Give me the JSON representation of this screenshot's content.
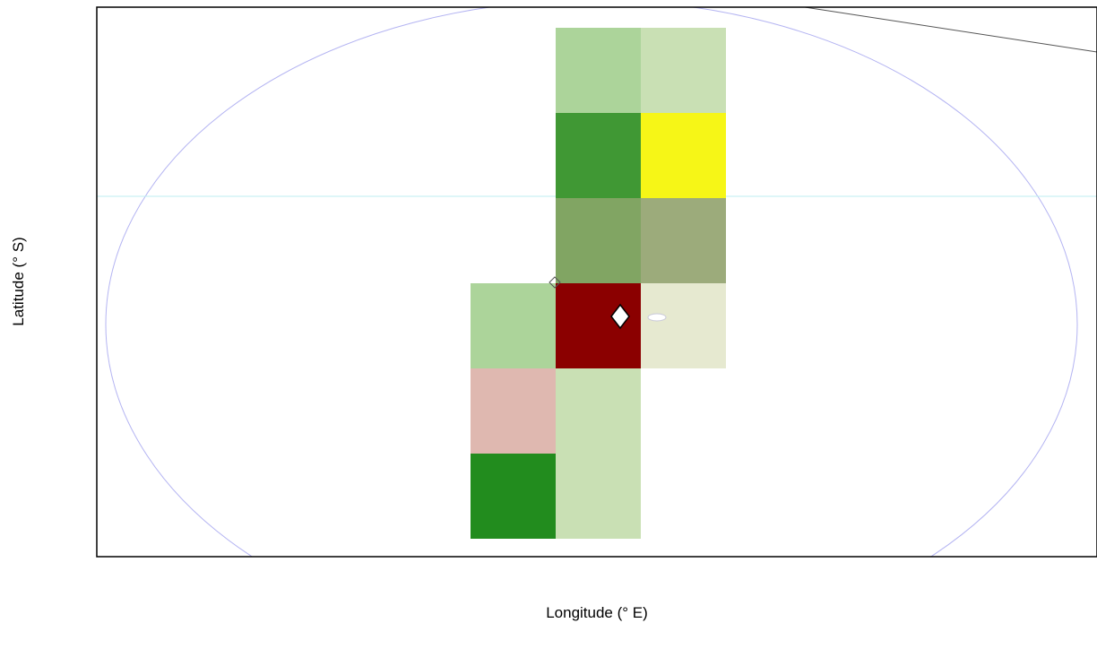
{
  "chart_data": {
    "type": "heatmap",
    "title": "",
    "xlabel": "Longitude (° E)",
    "ylabel": "Latitude (° S)",
    "grid": false,
    "legend": "none",
    "colors": {
      "frame": "#000000",
      "ellipse": "#b4b4f2",
      "equator": "#bdeef2",
      "border_line": "#555555",
      "lake": "#c8c8d8",
      "marker_fill": "#ffffff",
      "marker_stroke": "#000000"
    },
    "cells": [
      {
        "col": 1,
        "row": 0,
        "color": "#acd49a"
      },
      {
        "col": 2,
        "row": 0,
        "color": "#c9e0b4"
      },
      {
        "col": 1,
        "row": 1,
        "color": "#409834"
      },
      {
        "col": 2,
        "row": 1,
        "color": "#f6f617"
      },
      {
        "col": 1,
        "row": 2,
        "color": "#81a563"
      },
      {
        "col": 2,
        "row": 2,
        "color": "#9cab7b"
      },
      {
        "col": 0,
        "row": 3,
        "color": "#acd49a"
      },
      {
        "col": 1,
        "row": 3,
        "color": "#8b0000"
      },
      {
        "col": 2,
        "row": 3,
        "color": "#e6e9d0"
      },
      {
        "col": 0,
        "row": 4,
        "color": "#dfb8b0"
      },
      {
        "col": 1,
        "row": 4,
        "color": "#c9e0b4"
      },
      {
        "col": 0,
        "row": 5,
        "color": "#228c1e"
      },
      {
        "col": 1,
        "row": 5,
        "color": "#c9e0b4"
      }
    ]
  }
}
